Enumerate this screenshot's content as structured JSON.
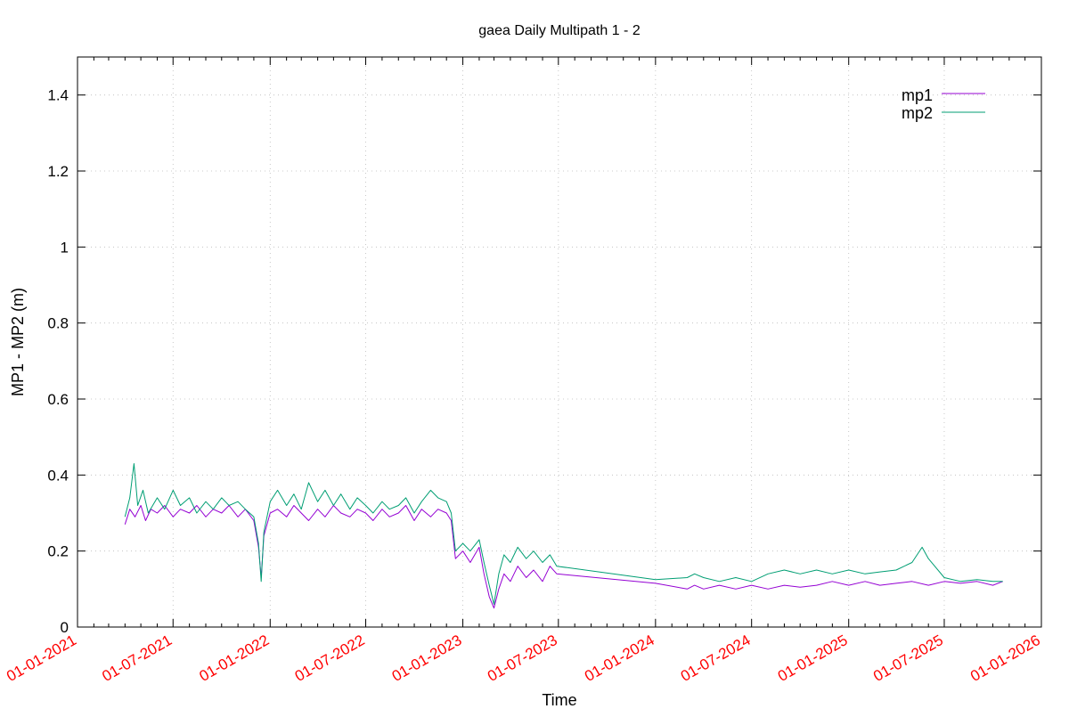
{
  "chart_data": {
    "type": "line",
    "title": "gaea Daily Multipath 1 - 2",
    "xlabel": "Time",
    "ylabel": "MP1 - MP2 (m)",
    "xlim": [
      "2021-01-01",
      "2026-01-01"
    ],
    "ylim": [
      0,
      1.5
    ],
    "grid": true,
    "legend_placement": "top-right",
    "x_tick_labels": [
      "01-01-2021",
      "01-07-2021",
      "01-01-2022",
      "01-07-2022",
      "01-01-2023",
      "01-07-2023",
      "01-01-2024",
      "01-07-2024",
      "01-01-2025",
      "01-07-2025",
      "01-01-2026"
    ],
    "y_ticks": [
      0,
      0.2,
      0.4,
      0.6,
      0.8,
      1,
      1.2,
      1.4
    ],
    "y_tick_labels": [
      "0",
      "0.2",
      "0.4",
      "0.6",
      "0.8",
      "1",
      "1.2",
      "1.4"
    ],
    "tick_label_color": "#ff0000",
    "series": [
      {
        "name": "mp1",
        "color": "#9400d3",
        "points": [
          [
            "2021-04-01",
            0.27
          ],
          [
            "2021-04-10",
            0.31
          ],
          [
            "2021-04-20",
            0.29
          ],
          [
            "2021-05-01",
            0.32
          ],
          [
            "2021-05-10",
            0.28
          ],
          [
            "2021-05-20",
            0.31
          ],
          [
            "2021-06-01",
            0.3
          ],
          [
            "2021-06-15",
            0.32
          ],
          [
            "2021-07-01",
            0.29
          ],
          [
            "2021-07-15",
            0.31
          ],
          [
            "2021-08-01",
            0.3
          ],
          [
            "2021-08-15",
            0.32
          ],
          [
            "2021-09-01",
            0.29
          ],
          [
            "2021-09-15",
            0.31
          ],
          [
            "2021-10-01",
            0.3
          ],
          [
            "2021-10-15",
            0.32
          ],
          [
            "2021-11-01",
            0.29
          ],
          [
            "2021-11-15",
            0.31
          ],
          [
            "2021-12-01",
            0.28
          ],
          [
            "2021-12-10",
            0.21
          ],
          [
            "2021-12-15",
            0.13
          ],
          [
            "2021-12-20",
            0.24
          ],
          [
            "2022-01-01",
            0.3
          ],
          [
            "2022-01-15",
            0.31
          ],
          [
            "2022-02-01",
            0.29
          ],
          [
            "2022-02-15",
            0.32
          ],
          [
            "2022-03-01",
            0.3
          ],
          [
            "2022-03-15",
            0.28
          ],
          [
            "2022-04-01",
            0.31
          ],
          [
            "2022-04-15",
            0.29
          ],
          [
            "2022-05-01",
            0.32
          ],
          [
            "2022-05-15",
            0.3
          ],
          [
            "2022-06-01",
            0.29
          ],
          [
            "2022-06-15",
            0.31
          ],
          [
            "2022-07-01",
            0.3
          ],
          [
            "2022-07-15",
            0.28
          ],
          [
            "2022-08-01",
            0.31
          ],
          [
            "2022-08-15",
            0.29
          ],
          [
            "2022-09-01",
            0.3
          ],
          [
            "2022-09-15",
            0.32
          ],
          [
            "2022-10-01",
            0.28
          ],
          [
            "2022-10-15",
            0.31
          ],
          [
            "2022-11-01",
            0.29
          ],
          [
            "2022-11-15",
            0.31
          ],
          [
            "2022-12-01",
            0.3
          ],
          [
            "2022-12-10",
            0.28
          ],
          [
            "2022-12-18",
            0.18
          ],
          [
            "2023-01-01",
            0.2
          ],
          [
            "2023-01-15",
            0.17
          ],
          [
            "2023-02-01",
            0.21
          ],
          [
            "2023-02-10",
            0.14
          ],
          [
            "2023-02-20",
            0.08
          ],
          [
            "2023-03-01",
            0.05
          ],
          [
            "2023-03-10",
            0.1
          ],
          [
            "2023-03-20",
            0.14
          ],
          [
            "2023-04-01",
            0.12
          ],
          [
            "2023-04-15",
            0.16
          ],
          [
            "2023-05-01",
            0.13
          ],
          [
            "2023-05-15",
            0.15
          ],
          [
            "2023-06-01",
            0.12
          ],
          [
            "2023-06-15",
            0.16
          ],
          [
            "2023-06-28",
            0.14
          ],
          [
            "2024-01-01",
            0.115
          ],
          [
            "2024-03-01",
            0.1
          ],
          [
            "2024-03-15",
            0.11
          ],
          [
            "2024-04-01",
            0.1
          ],
          [
            "2024-05-01",
            0.11
          ],
          [
            "2024-06-01",
            0.1
          ],
          [
            "2024-07-01",
            0.11
          ],
          [
            "2024-08-01",
            0.1
          ],
          [
            "2024-09-01",
            0.11
          ],
          [
            "2024-10-01",
            0.105
          ],
          [
            "2024-11-01",
            0.11
          ],
          [
            "2024-12-01",
            0.12
          ],
          [
            "2025-01-01",
            0.11
          ],
          [
            "2025-02-01",
            0.12
          ],
          [
            "2025-03-01",
            0.11
          ],
          [
            "2025-04-01",
            0.115
          ],
          [
            "2025-05-01",
            0.12
          ],
          [
            "2025-06-01",
            0.11
          ],
          [
            "2025-07-01",
            0.12
          ],
          [
            "2025-08-01",
            0.115
          ],
          [
            "2025-09-01",
            0.12
          ],
          [
            "2025-10-01",
            0.11
          ],
          [
            "2025-10-20",
            0.12
          ]
        ]
      },
      {
        "name": "mp2",
        "color": "#009e73",
        "points": [
          [
            "2021-04-01",
            0.29
          ],
          [
            "2021-04-10",
            0.34
          ],
          [
            "2021-04-18",
            0.43
          ],
          [
            "2021-04-25",
            0.32
          ],
          [
            "2021-05-05",
            0.36
          ],
          [
            "2021-05-15",
            0.3
          ],
          [
            "2021-06-01",
            0.34
          ],
          [
            "2021-06-15",
            0.31
          ],
          [
            "2021-07-01",
            0.36
          ],
          [
            "2021-07-15",
            0.32
          ],
          [
            "2021-08-01",
            0.34
          ],
          [
            "2021-08-15",
            0.3
          ],
          [
            "2021-09-01",
            0.33
          ],
          [
            "2021-09-15",
            0.31
          ],
          [
            "2021-10-01",
            0.34
          ],
          [
            "2021-10-15",
            0.32
          ],
          [
            "2021-11-01",
            0.33
          ],
          [
            "2021-11-15",
            0.31
          ],
          [
            "2021-12-01",
            0.29
          ],
          [
            "2021-12-10",
            0.22
          ],
          [
            "2021-12-15",
            0.12
          ],
          [
            "2021-12-20",
            0.25
          ],
          [
            "2022-01-01",
            0.33
          ],
          [
            "2022-01-15",
            0.36
          ],
          [
            "2022-02-01",
            0.32
          ],
          [
            "2022-02-15",
            0.35
          ],
          [
            "2022-03-01",
            0.31
          ],
          [
            "2022-03-15",
            0.38
          ],
          [
            "2022-04-01",
            0.33
          ],
          [
            "2022-04-15",
            0.36
          ],
          [
            "2022-05-01",
            0.32
          ],
          [
            "2022-05-15",
            0.35
          ],
          [
            "2022-06-01",
            0.31
          ],
          [
            "2022-06-15",
            0.34
          ],
          [
            "2022-07-01",
            0.32
          ],
          [
            "2022-07-15",
            0.3
          ],
          [
            "2022-08-01",
            0.33
          ],
          [
            "2022-08-15",
            0.31
          ],
          [
            "2022-09-01",
            0.32
          ],
          [
            "2022-09-15",
            0.34
          ],
          [
            "2022-10-01",
            0.3
          ],
          [
            "2022-10-15",
            0.33
          ],
          [
            "2022-11-01",
            0.36
          ],
          [
            "2022-11-15",
            0.34
          ],
          [
            "2022-12-01",
            0.33
          ],
          [
            "2022-12-10",
            0.3
          ],
          [
            "2022-12-18",
            0.2
          ],
          [
            "2023-01-01",
            0.22
          ],
          [
            "2023-01-15",
            0.2
          ],
          [
            "2023-02-01",
            0.23
          ],
          [
            "2023-02-10",
            0.17
          ],
          [
            "2023-02-20",
            0.11
          ],
          [
            "2023-03-01",
            0.06
          ],
          [
            "2023-03-10",
            0.14
          ],
          [
            "2023-03-20",
            0.19
          ],
          [
            "2023-04-01",
            0.17
          ],
          [
            "2023-04-15",
            0.21
          ],
          [
            "2023-05-01",
            0.18
          ],
          [
            "2023-05-15",
            0.2
          ],
          [
            "2023-06-01",
            0.17
          ],
          [
            "2023-06-15",
            0.19
          ],
          [
            "2023-06-28",
            0.16
          ],
          [
            "2024-01-01",
            0.125
          ],
          [
            "2024-03-01",
            0.13
          ],
          [
            "2024-03-15",
            0.14
          ],
          [
            "2024-04-01",
            0.13
          ],
          [
            "2024-05-01",
            0.12
          ],
          [
            "2024-06-01",
            0.13
          ],
          [
            "2024-07-01",
            0.12
          ],
          [
            "2024-08-01",
            0.14
          ],
          [
            "2024-09-01",
            0.15
          ],
          [
            "2024-10-01",
            0.14
          ],
          [
            "2024-11-01",
            0.15
          ],
          [
            "2024-12-01",
            0.14
          ],
          [
            "2025-01-01",
            0.15
          ],
          [
            "2025-02-01",
            0.14
          ],
          [
            "2025-03-01",
            0.145
          ],
          [
            "2025-04-01",
            0.15
          ],
          [
            "2025-05-01",
            0.17
          ],
          [
            "2025-05-20",
            0.21
          ],
          [
            "2025-06-01",
            0.18
          ],
          [
            "2025-07-01",
            0.13
          ],
          [
            "2025-08-01",
            0.12
          ],
          [
            "2025-09-01",
            0.125
          ],
          [
            "2025-10-01",
            0.12
          ],
          [
            "2025-10-20",
            0.12
          ]
        ]
      }
    ]
  }
}
